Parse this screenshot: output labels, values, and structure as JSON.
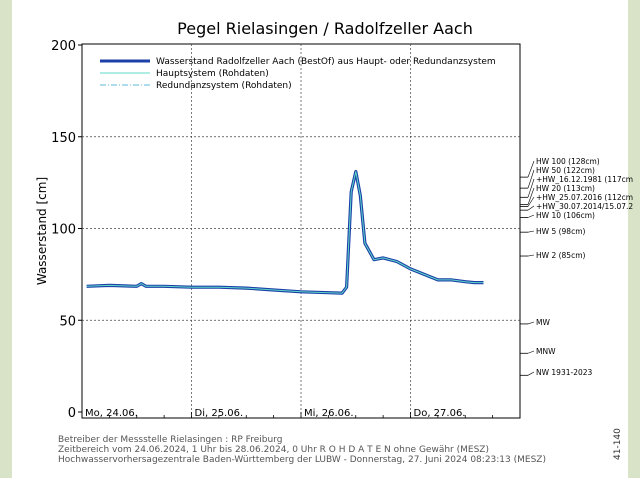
{
  "chart_data": {
    "type": "line",
    "title": "Pegel Rielasingen / Radolfzeller Aach",
    "ylabel": "Wasserstand [cm]",
    "ylim": [
      0,
      200
    ],
    "yticks": [
      "0",
      "50",
      "100",
      "150",
      "200"
    ],
    "xlim": [
      "2024-06-24 00:00",
      "2024-06-28 00:00"
    ],
    "xticks": [
      "Mo, 24.06.",
      "Di, 25.06.",
      "Mi, 26.06.",
      "Do, 27.06."
    ],
    "grid": true,
    "legend": "top-left",
    "series": [
      {
        "name": "Wasserstand Radolfzeller Aach   (BestOf)   aus Haupt- oder Redundanzsystem",
        "color": "#1c3fa8",
        "x": [
          "2024-06-24 01:00",
          "2024-06-24 06:00",
          "2024-06-24 12:00",
          "2024-06-24 13:00",
          "2024-06-24 14:00",
          "2024-06-24 18:00",
          "2024-06-25 00:00",
          "2024-06-25 06:00",
          "2024-06-25 12:00",
          "2024-06-25 18:00",
          "2024-06-26 00:00",
          "2024-06-26 06:00",
          "2024-06-26 09:00",
          "2024-06-26 10:00",
          "2024-06-26 11:00",
          "2024-06-26 12:00",
          "2024-06-26 13:00",
          "2024-06-26 14:00",
          "2024-06-26 16:00",
          "2024-06-26 18:00",
          "2024-06-26 21:00",
          "2024-06-27 00:00",
          "2024-06-27 03:00",
          "2024-06-27 06:00",
          "2024-06-27 09:00",
          "2024-06-27 12:00",
          "2024-06-27 14:00",
          "2024-06-27 16:00"
        ],
        "values": [
          68.5,
          69,
          68.5,
          70,
          68.5,
          68.5,
          68,
          68,
          67.5,
          66.5,
          65.5,
          65,
          64.8,
          68,
          120,
          131,
          118,
          92,
          83,
          84,
          82,
          78,
          75,
          72,
          72,
          71,
          70.5,
          70.5
        ]
      },
      {
        "name": "Hauptsystem (Rohdaten)",
        "color": "#5fd8c8",
        "x": [
          "2024-06-24 01:00",
          "2024-06-24 06:00",
          "2024-06-24 12:00",
          "2024-06-24 13:00",
          "2024-06-24 14:00",
          "2024-06-24 18:00",
          "2024-06-25 00:00",
          "2024-06-25 06:00",
          "2024-06-25 12:00",
          "2024-06-25 18:00",
          "2024-06-26 00:00",
          "2024-06-26 06:00",
          "2024-06-26 09:00",
          "2024-06-26 10:00",
          "2024-06-26 11:00",
          "2024-06-26 12:00",
          "2024-06-26 13:00",
          "2024-06-26 14:00",
          "2024-06-26 16:00",
          "2024-06-26 18:00",
          "2024-06-26 21:00",
          "2024-06-27 00:00",
          "2024-06-27 03:00",
          "2024-06-27 06:00",
          "2024-06-27 09:00",
          "2024-06-27 12:00",
          "2024-06-27 14:00",
          "2024-06-27 16:00"
        ],
        "values": [
          68.5,
          69,
          68.5,
          70,
          68.5,
          68.5,
          68,
          68,
          67.5,
          66.5,
          65.5,
          65,
          64.8,
          68,
          120,
          131,
          118,
          92,
          83,
          84,
          82,
          78,
          75,
          72,
          72,
          71,
          70.5,
          70.5
        ]
      },
      {
        "name": "Redundanzsystem (Rohdaten)",
        "color": "#5fb8d8",
        "x": [],
        "values": []
      }
    ],
    "annotations": [
      {
        "label": "HW 100 (128cm)",
        "y": 128
      },
      {
        "label": "HW 50 (122cm)",
        "y": 122
      },
      {
        "label": "+HW_16.12.1981 (117cm",
        "y": 117
      },
      {
        "label": "HW 20 (113cm)",
        "y": 113
      },
      {
        "label": "+HW_25.07.2016 (112cm",
        "y": 112
      },
      {
        "label": "+HW_30.07.2014/15.07.2",
        "y": 110
      },
      {
        "label": "HW 10 (106cm)",
        "y": 106
      },
      {
        "label": "HW 5 (98cm)",
        "y": 98
      },
      {
        "label": "HW 2 (85cm)",
        "y": 85
      },
      {
        "label": "MW",
        "y": 48
      },
      {
        "label": "MNW",
        "y": 32
      },
      {
        "label": "NW 1931-2023",
        "y": 20
      }
    ]
  },
  "footer": {
    "line1": "Betreiber der Messstelle Rielasingen : RP Freiburg",
    "line2": "Zeitbereich vom 24.06.2024, 1 Uhr bis 28.06.2024, 0 Uhr    R O H D A T E N ohne Gewähr (MESZ)",
    "line3": "Hochwasservorhersagezentrale Baden-Württemberg der LUBW - Donnerstag, 27. Juni 2024 08:23:13 (MESZ)",
    "side_code": "41-140"
  }
}
